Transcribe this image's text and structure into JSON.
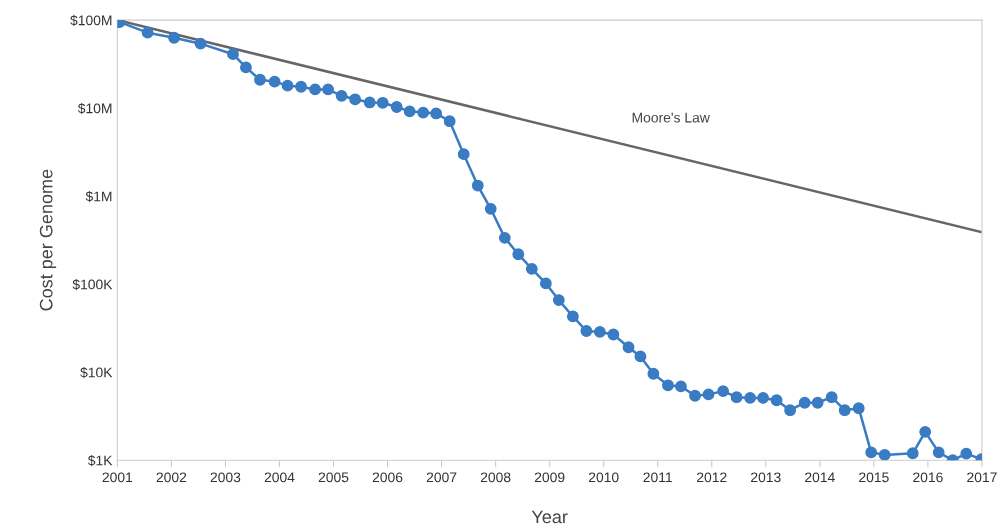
{
  "chart_data": {
    "type": "line",
    "xlabel": "Year",
    "ylabel": "Cost per Genome",
    "log": "y",
    "grid": false,
    "legend": false,
    "marker": "circle",
    "line_style": "solid",
    "xlim": [
      2001,
      2017
    ],
    "xticks": [
      2001,
      2002,
      2003,
      2004,
      2005,
      2006,
      2007,
      2008,
      2009,
      2010,
      2011,
      2012,
      2013,
      2014,
      2015,
      2016,
      2017
    ],
    "ylim": [
      1000,
      100000000
    ],
    "yticks": [
      {
        "value": 1000,
        "label": "$1K"
      },
      {
        "value": 10000,
        "label": "$10K"
      },
      {
        "value": 100000,
        "label": "$100K"
      },
      {
        "value": 1000000,
        "label": "$1M"
      },
      {
        "value": 10000000,
        "label": "$10M"
      },
      {
        "value": 100000000,
        "label": "$100M"
      }
    ],
    "series": [
      {
        "color": "#3a7cc3",
        "x": [
          2001.04,
          2001.56,
          2002.05,
          2002.54,
          2003.14,
          2003.38,
          2003.64,
          2003.91,
          2004.15,
          2004.4,
          2004.66,
          2004.9,
          2005.15,
          2005.4,
          2005.67,
          2005.91,
          2006.17,
          2006.41,
          2006.66,
          2006.9,
          2007.15,
          2007.41,
          2007.67,
          2007.91,
          2008.17,
          2008.42,
          2008.67,
          2008.93,
          2009.17,
          2009.43,
          2009.68,
          2009.93,
          2010.18,
          2010.46,
          2010.68,
          2010.92,
          2011.19,
          2011.43,
          2011.69,
          2011.94,
          2012.21,
          2012.46,
          2012.71,
          2012.95,
          2013.2,
          2013.45,
          2013.72,
          2013.96,
          2014.22,
          2014.46,
          2014.72,
          2014.95,
          2015.2,
          2015.72,
          2015.95,
          2016.2,
          2016.46,
          2016.71,
          2016.99
        ],
        "values": [
          95000000,
          72000000,
          63000000,
          54000000,
          41000000,
          29000000,
          21000000,
          20000000,
          18000000,
          17500000,
          16300000,
          16300000,
          13800000,
          12600000,
          11600000,
          11500000,
          10300000,
          9200000,
          8900000,
          8700000,
          7100000,
          3000000,
          1320000,
          718000,
          336000,
          219000,
          149000,
          102000,
          66000,
          43000,
          29400,
          28700,
          26800,
          19200,
          15100,
          9600,
          7100,
          6900,
          5400,
          5600,
          6100,
          5200,
          5100,
          5100,
          4800,
          3700,
          4500,
          4500,
          5200,
          3700,
          3900,
          1230,
          1150,
          1200,
          2100,
          1230,
          1000,
          1190,
          1030
        ]
      },
      {
        "name": "Moore's Law",
        "color": "#666666",
        "marker": "none",
        "x": [
          2001,
          2017
        ],
        "values": [
          100000000,
          390000
        ]
      }
    ]
  }
}
